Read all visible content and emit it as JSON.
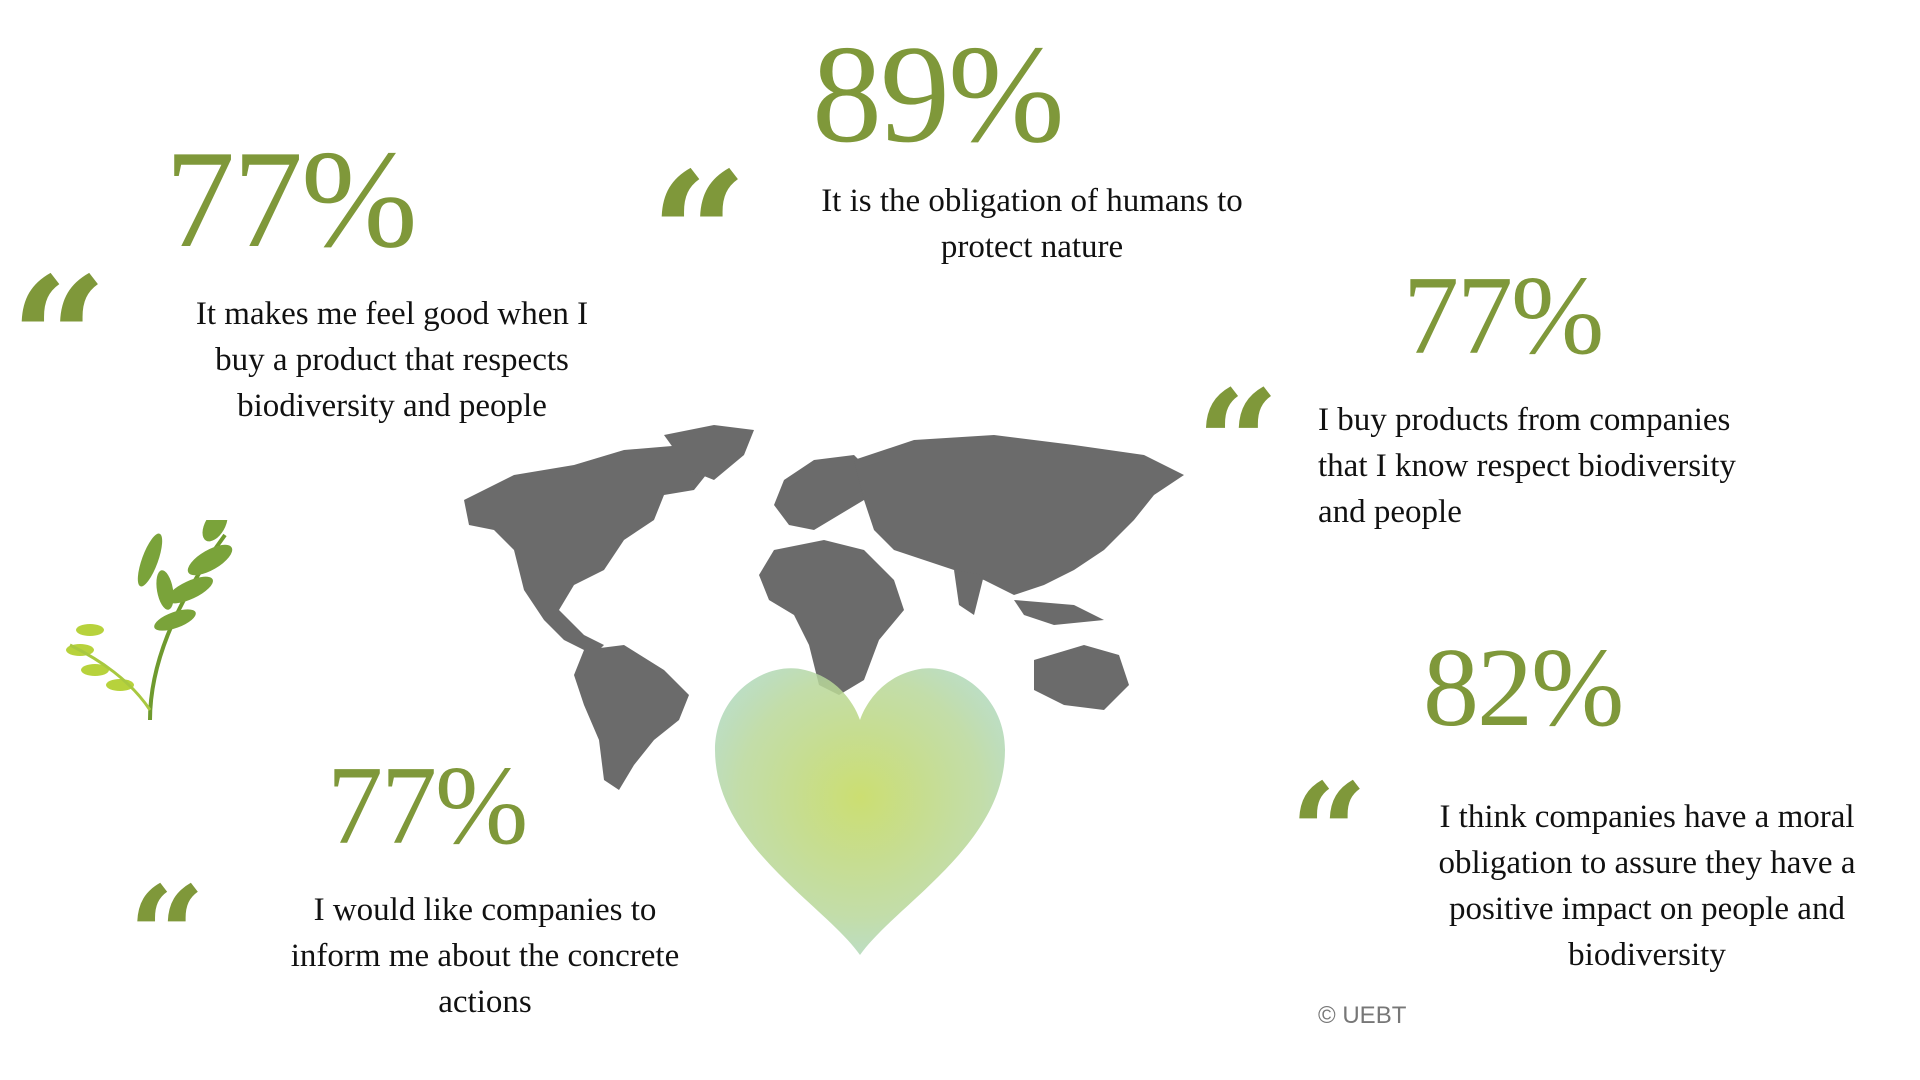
{
  "colors": {
    "accent_green": "#7f983a",
    "map_gray": "#6b6b6b",
    "text": "#111111"
  },
  "stats": [
    {
      "percent": "89%",
      "quote": "It is the obligation of humans to\nprotect nature"
    },
    {
      "percent": "77%",
      "quote": "It makes me feel good when I\nbuy a product that respects\nbiodiversity and people"
    },
    {
      "percent": "77%",
      "quote": "I buy products from companies\nthat I know respect biodiversity\nand people"
    },
    {
      "percent": "82%",
      "quote": "I think companies have a moral\nobligation to assure they have a\npositive impact on people and\nbiodiversity"
    },
    {
      "percent": "77%",
      "quote": "I would like companies to\ninform me about the concrete\nactions"
    }
  ],
  "quote_mark": "“",
  "credit": "© UEBT",
  "icons": [
    "quote-mark-icon",
    "world-map",
    "heart-watercolor",
    "leaf-branch-icon"
  ]
}
